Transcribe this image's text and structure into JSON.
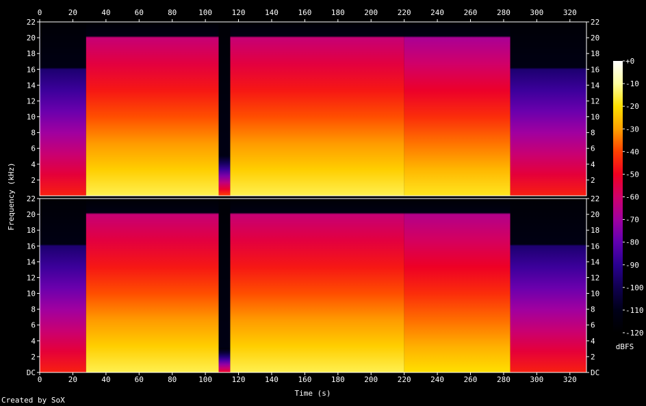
{
  "chart_data": {
    "type": "heatmap",
    "title": "",
    "xlabel": "Time (s)",
    "ylabel": "Frequency (kHz)",
    "xlim": [
      0,
      330
    ],
    "ylim": [
      0,
      22
    ],
    "x_ticks": [
      "0",
      "20",
      "40",
      "60",
      "80",
      "100",
      "120",
      "140",
      "160",
      "180",
      "200",
      "220",
      "240",
      "260",
      "280",
      "300",
      "320"
    ],
    "y_ticks": [
      "DC",
      "2",
      "4",
      "6",
      "8",
      "10",
      "12",
      "14",
      "16",
      "18",
      "20",
      "22"
    ],
    "channels": [
      {
        "name": "",
        "segments": [
          {
            "t0": 0,
            "t1": 28,
            "level_top": -95,
            "level_bottom": -45,
            "cutoff_khz": 16
          },
          {
            "t0": 28,
            "t1": 108,
            "level_top": -62,
            "level_bottom": -15,
            "cutoff_khz": 20
          },
          {
            "t0": 108,
            "t1": 115,
            "level_top": -110,
            "level_bottom": -40,
            "cutoff_khz": 5
          },
          {
            "t0": 115,
            "t1": 220,
            "level_top": -62,
            "level_bottom": -15,
            "cutoff_khz": 20
          },
          {
            "t0": 220,
            "t1": 284,
            "level_top": -68,
            "level_bottom": -18,
            "cutoff_khz": 20
          },
          {
            "t0": 284,
            "t1": 330,
            "level_top": -95,
            "level_bottom": -45,
            "cutoff_khz": 16
          }
        ]
      },
      {
        "name": "",
        "segments": [
          {
            "t0": 0,
            "t1": 28,
            "level_top": -95,
            "level_bottom": -45,
            "cutoff_khz": 16
          },
          {
            "t0": 28,
            "t1": 108,
            "level_top": -62,
            "level_bottom": -15,
            "cutoff_khz": 20
          },
          {
            "t0": 108,
            "t1": 115,
            "level_top": -115,
            "level_bottom": -50,
            "cutoff_khz": 3
          },
          {
            "t0": 115,
            "t1": 220,
            "level_top": -62,
            "level_bottom": -15,
            "cutoff_khz": 20
          },
          {
            "t0": 220,
            "t1": 284,
            "level_top": -66,
            "level_bottom": -20,
            "cutoff_khz": 20
          },
          {
            "t0": 284,
            "t1": 330,
            "level_top": -95,
            "level_bottom": -45,
            "cutoff_khz": 16
          }
        ]
      }
    ],
    "colorbar": {
      "label": "dBFS",
      "range": [
        -120,
        0
      ],
      "ticks": [
        "+0",
        "-10",
        "-20",
        "-30",
        "-40",
        "-50",
        "-60",
        "-70",
        "-80",
        "-90",
        "-100",
        "-110",
        "-120"
      ],
      "stops": [
        "#ffffff",
        "#ffffa0",
        "#ffe000",
        "#ffa000",
        "#ff4000",
        "#f00020",
        "#d0006a",
        "#a000a0",
        "#6000b0",
        "#2a0090",
        "#100050",
        "#000018",
        "#000000"
      ]
    },
    "legend": "right"
  },
  "credit": "Created by SoX"
}
